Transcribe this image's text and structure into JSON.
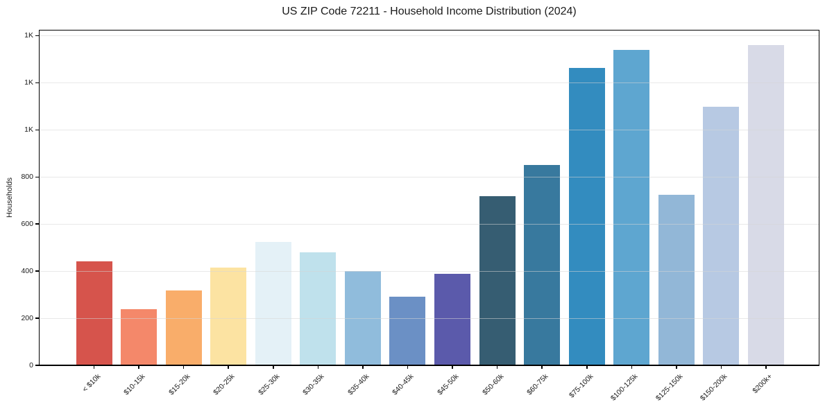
{
  "chart_data": {
    "type": "bar",
    "title": "US ZIP Code 72211 - Household Income Distribution (2024)",
    "xlabel": "",
    "ylabel": "Households",
    "categories": [
      "< $10k",
      "$10-15k",
      "$15-20k",
      "$20-25k",
      "$25-30k",
      "$30-35k",
      "$35-40k",
      "$40-45k",
      "$45-50k",
      "$50-60k",
      "$60-75k",
      "$75-100k",
      "$100-125k",
      "$125-150k",
      "$150-200k",
      "$200k+"
    ],
    "values": [
      443,
      238,
      319,
      416,
      524,
      479,
      400,
      292,
      389,
      717,
      850,
      1264,
      1341,
      724,
      1099,
      1359
    ],
    "bar_colors": [
      "#d6544c",
      "#f4886a",
      "#f9ad6a",
      "#fce3a2",
      "#e4f1f7",
      "#bfe1ec",
      "#90bcdc",
      "#6b90c5",
      "#5b5aab",
      "#365d72",
      "#38799e",
      "#338cbf",
      "#5ea6d0",
      "#92b7d7",
      "#b7c9e3",
      "#d8dae7"
    ],
    "ylim": [
      0,
      1425
    ],
    "ytick_values": [
      0,
      200,
      400,
      600,
      800,
      1000,
      1200,
      1400
    ],
    "ytick_labels": [
      "0",
      "200",
      "400",
      "600",
      "800",
      "1K",
      "1K",
      "1K"
    ],
    "x_tick_rotation_deg": 45,
    "grid": "horizontal",
    "grid_color": "#e9e9e9",
    "legend": "none",
    "background_color": "#ffffff",
    "spine_color": "#000000"
  }
}
